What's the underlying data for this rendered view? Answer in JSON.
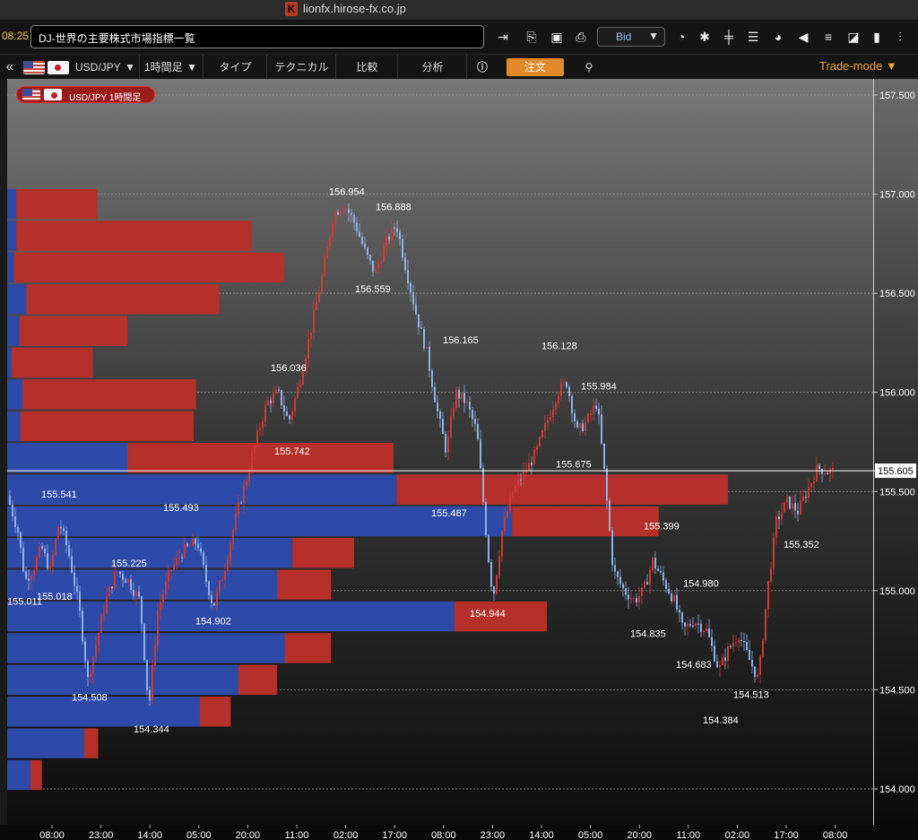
{
  "window": {
    "domain": "lionfx.hirose-fx.co.jp",
    "app_icon": "hirose-logo-icon"
  },
  "news": {
    "time": "08:25",
    "headline": "DJ-世界の主要株式市場指標一覧"
  },
  "toolbar": {
    "price_type": "Bid",
    "icons": [
      "exit-icon",
      "export-icon",
      "save-icon",
      "print-icon",
      "speedometer-icon",
      "gear-icon",
      "ladder-icon",
      "board-icon",
      "pie-chart-icon",
      "megaphone-icon",
      "list-icon",
      "chart-edit-icon",
      "paint-roller-icon",
      "settings-sliders-icon"
    ]
  },
  "menubar": {
    "pair": "USD/JPY",
    "timeframe": "1時間足",
    "type_label": "タイプ",
    "technical_label": "テクニカル",
    "compare_label": "比較",
    "analysis_label": "分析",
    "order_label": "注文",
    "trade_mode": "Trade-mode"
  },
  "chart_badge": "USD/JPY 1時間足",
  "chart_data": {
    "type": "candlestick",
    "pair": "USD/JPY",
    "timeframe": "1時間足",
    "current_price": "155.605",
    "y_ticks": [
      "157.500",
      "157.000",
      "156.500",
      "156.000",
      "155.500",
      "155.000",
      "154.500",
      "154.000"
    ],
    "x_ticks": [
      "08:00",
      "23:00",
      "14:00",
      "05:00",
      "20:00",
      "11:00",
      "02:00",
      "17:00",
      "08:00",
      "23:00",
      "14:00",
      "05:00",
      "20:00",
      "11:00",
      "02:00",
      "17:00",
      "08:00"
    ],
    "price_labels": [
      {
        "text": "156.954",
        "price": 156.954
      },
      {
        "text": "156.888",
        "price": 156.888
      },
      {
        "text": "156.559",
        "price": 156.559
      },
      {
        "text": "156.165",
        "price": 156.165
      },
      {
        "text": "156.128",
        "price": 156.128
      },
      {
        "text": "156.036",
        "price": 156.036
      },
      {
        "text": "155.984",
        "price": 155.984
      },
      {
        "text": "155.742",
        "price": 155.742
      },
      {
        "text": "155.675",
        "price": 155.675
      },
      {
        "text": "155.541",
        "price": 155.541
      },
      {
        "text": "155.493",
        "price": 155.493
      },
      {
        "text": "155.487",
        "price": 155.487
      },
      {
        "text": "155.399",
        "price": 155.399
      },
      {
        "text": "155.352",
        "price": 155.352
      },
      {
        "text": "155.225",
        "price": 155.225
      },
      {
        "text": "155.018",
        "price": 155.018
      },
      {
        "text": "155.011",
        "price": 155.011
      },
      {
        "text": "154.980",
        "price": 154.98
      },
      {
        "text": "154.944",
        "price": 154.944
      },
      {
        "text": "154.902",
        "price": 154.902
      },
      {
        "text": "154.835",
        "price": 154.835
      },
      {
        "text": "154.683",
        "price": 154.683
      },
      {
        "text": "154.513",
        "price": 154.513
      },
      {
        "text": "154.508",
        "price": 154.508
      },
      {
        "text": "154.384",
        "price": 154.384
      },
      {
        "text": "154.344",
        "price": 154.344
      }
    ],
    "volume_profile": [
      {
        "price": 156.95,
        "buy": 0.012,
        "sell": 0.105
      },
      {
        "price": 156.79,
        "buy": 0.012,
        "sell": 0.305
      },
      {
        "price": 156.63,
        "buy": 0.009,
        "sell": 0.35
      },
      {
        "price": 156.47,
        "buy": 0.025,
        "sell": 0.25
      },
      {
        "price": 156.31,
        "buy": 0.016,
        "sell": 0.14
      },
      {
        "price": 156.15,
        "buy": 0.006,
        "sell": 0.105
      },
      {
        "price": 155.99,
        "buy": 0.02,
        "sell": 0.225
      },
      {
        "price": 155.83,
        "buy": 0.017,
        "sell": 0.225
      },
      {
        "price": 155.67,
        "buy": 0.156,
        "sell": 0.345
      },
      {
        "price": 155.51,
        "buy": 0.505,
        "sell": 0.43
      },
      {
        "price": 155.35,
        "buy": 0.655,
        "sell": 0.19
      },
      {
        "price": 155.19,
        "buy": 0.37,
        "sell": 0.08
      },
      {
        "price": 155.03,
        "buy": 0.35,
        "sell": 0.07
      },
      {
        "price": 154.87,
        "buy": 0.58,
        "sell": 0.12
      },
      {
        "price": 154.71,
        "buy": 0.36,
        "sell": 0.06
      },
      {
        "price": 154.55,
        "buy": 0.3,
        "sell": 0.05
      },
      {
        "price": 154.39,
        "buy": 0.25,
        "sell": 0.04
      },
      {
        "price": 154.23,
        "buy": 0.1,
        "sell": 0.018
      },
      {
        "price": 154.07,
        "buy": 0.03,
        "sell": 0.015
      }
    ],
    "colors": {
      "up": "#cc3b33",
      "down": "#8fb0e8",
      "buy_bar": "#2e4aa8",
      "sell_bar": "#b5302a",
      "price_line": "#ffffff"
    }
  }
}
